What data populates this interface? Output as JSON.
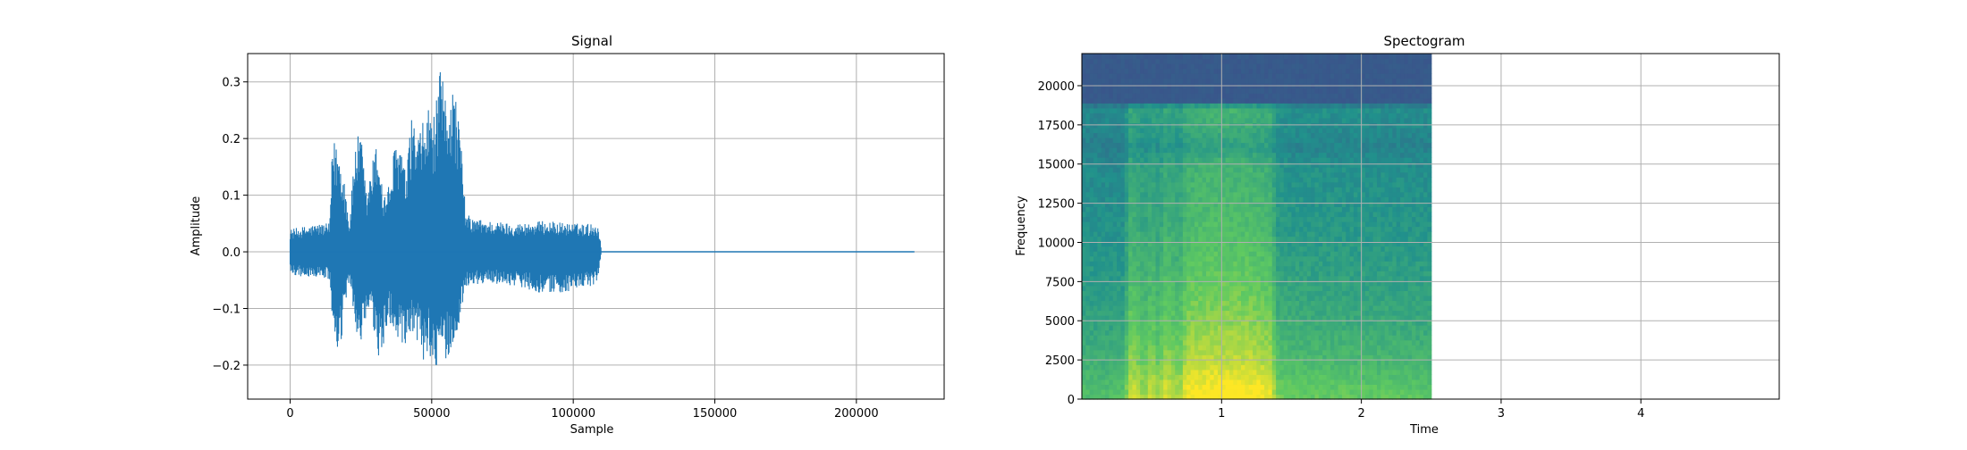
{
  "chart_data": [
    {
      "type": "line",
      "title": "Signal",
      "xlabel": "Sample",
      "ylabel": "Amplitude",
      "xlim": [
        -15000,
        231000
      ],
      "ylim": [
        -0.26,
        0.35
      ],
      "xticks": [
        0,
        50000,
        100000,
        150000,
        200000
      ],
      "xtick_labels": [
        "0",
        "50000",
        "100000",
        "150000",
        "200000"
      ],
      "yticks": [
        -0.2,
        -0.1,
        0.0,
        0.1,
        0.2,
        0.3
      ],
      "ytick_labels": [
        "−0.2",
        "−0.1",
        "0.0",
        "0.1",
        "0.2",
        "0.3"
      ],
      "grid": true,
      "color": "#1f77b4",
      "series": [
        {
          "envelope": {
            "x": [
              0,
              5000,
              10000,
              14000,
              15000,
              17000,
              19000,
              21000,
              23000,
              25000,
              27000,
              29000,
              31000,
              33000,
              35000,
              37000,
              39000,
              41000,
              43000,
              45000,
              47000,
              49000,
              51000,
              53000,
              55000,
              57000,
              59000,
              61000,
              62000,
              64000,
              70000,
              80000,
              90000,
              100000,
              108000,
              109000,
              110000,
              220000
            ],
            "upper": [
              0.04,
              0.045,
              0.05,
              0.05,
              0.2,
              0.19,
              0.14,
              0.05,
              0.2,
              0.21,
              0.1,
              0.16,
              0.2,
              0.1,
              0.12,
              0.19,
              0.2,
              0.13,
              0.25,
              0.2,
              0.23,
              0.26,
              0.24,
              0.32,
              0.28,
              0.3,
              0.27,
              0.15,
              0.07,
              0.06,
              0.055,
              0.05,
              0.055,
              0.05,
              0.05,
              0.045,
              0.0,
              0.0
            ],
            "lower": [
              -0.04,
              -0.045,
              -0.045,
              -0.05,
              -0.14,
              -0.21,
              -0.12,
              -0.05,
              -0.13,
              -0.18,
              -0.12,
              -0.12,
              -0.2,
              -0.17,
              -0.12,
              -0.15,
              -0.17,
              -0.19,
              -0.15,
              -0.16,
              -0.2,
              -0.17,
              -0.23,
              -0.2,
              -0.19,
              -0.18,
              -0.15,
              -0.09,
              -0.06,
              -0.06,
              -0.055,
              -0.06,
              -0.075,
              -0.07,
              -0.06,
              -0.04,
              0.0,
              0.0
            ]
          }
        }
      ]
    },
    {
      "type": "heatmap",
      "title": "Spectogram",
      "xlabel": "Time",
      "ylabel": "Frequency",
      "xlim": [
        0,
        4.99
      ],
      "ylim": [
        0,
        22050
      ],
      "xticks": [
        1,
        2,
        3,
        4
      ],
      "xtick_labels": [
        "1",
        "2",
        "3",
        "4"
      ],
      "yticks": [
        0,
        2500,
        5000,
        7500,
        10000,
        12500,
        15000,
        17500,
        20000
      ],
      "ytick_labels": [
        "0",
        "2500",
        "5000",
        "7500",
        "10000",
        "12500",
        "15000",
        "17500",
        "20000"
      ],
      "grid": true,
      "colormap": "viridis",
      "data_extent_time": [
        0,
        2.5
      ],
      "colormap_stops": [
        "#440154",
        "#3b528b",
        "#21918c",
        "#5ec962",
        "#fde725"
      ],
      "energy_profile": {
        "time": [
          0.0,
          0.3,
          0.35,
          0.45,
          0.5,
          0.55,
          0.6,
          0.7,
          0.75,
          1.0,
          1.2,
          1.35,
          1.4,
          1.5,
          2.0,
          2.45
        ],
        "level": [
          0.3,
          0.3,
          0.75,
          0.55,
          0.7,
          0.55,
          0.75,
          0.6,
          0.85,
          0.9,
          0.88,
          0.8,
          0.45,
          0.4,
          0.38,
          0.35
        ]
      },
      "frequency_profile": {
        "freq": [
          0,
          1000,
          2500,
          5000,
          7500,
          10000,
          12500,
          15000,
          16000,
          17000,
          18500,
          19000,
          22050
        ],
        "level": [
          1.0,
          0.95,
          0.85,
          0.75,
          0.68,
          0.62,
          0.58,
          0.55,
          0.45,
          0.5,
          0.55,
          0.3,
          0.3
        ]
      }
    }
  ]
}
